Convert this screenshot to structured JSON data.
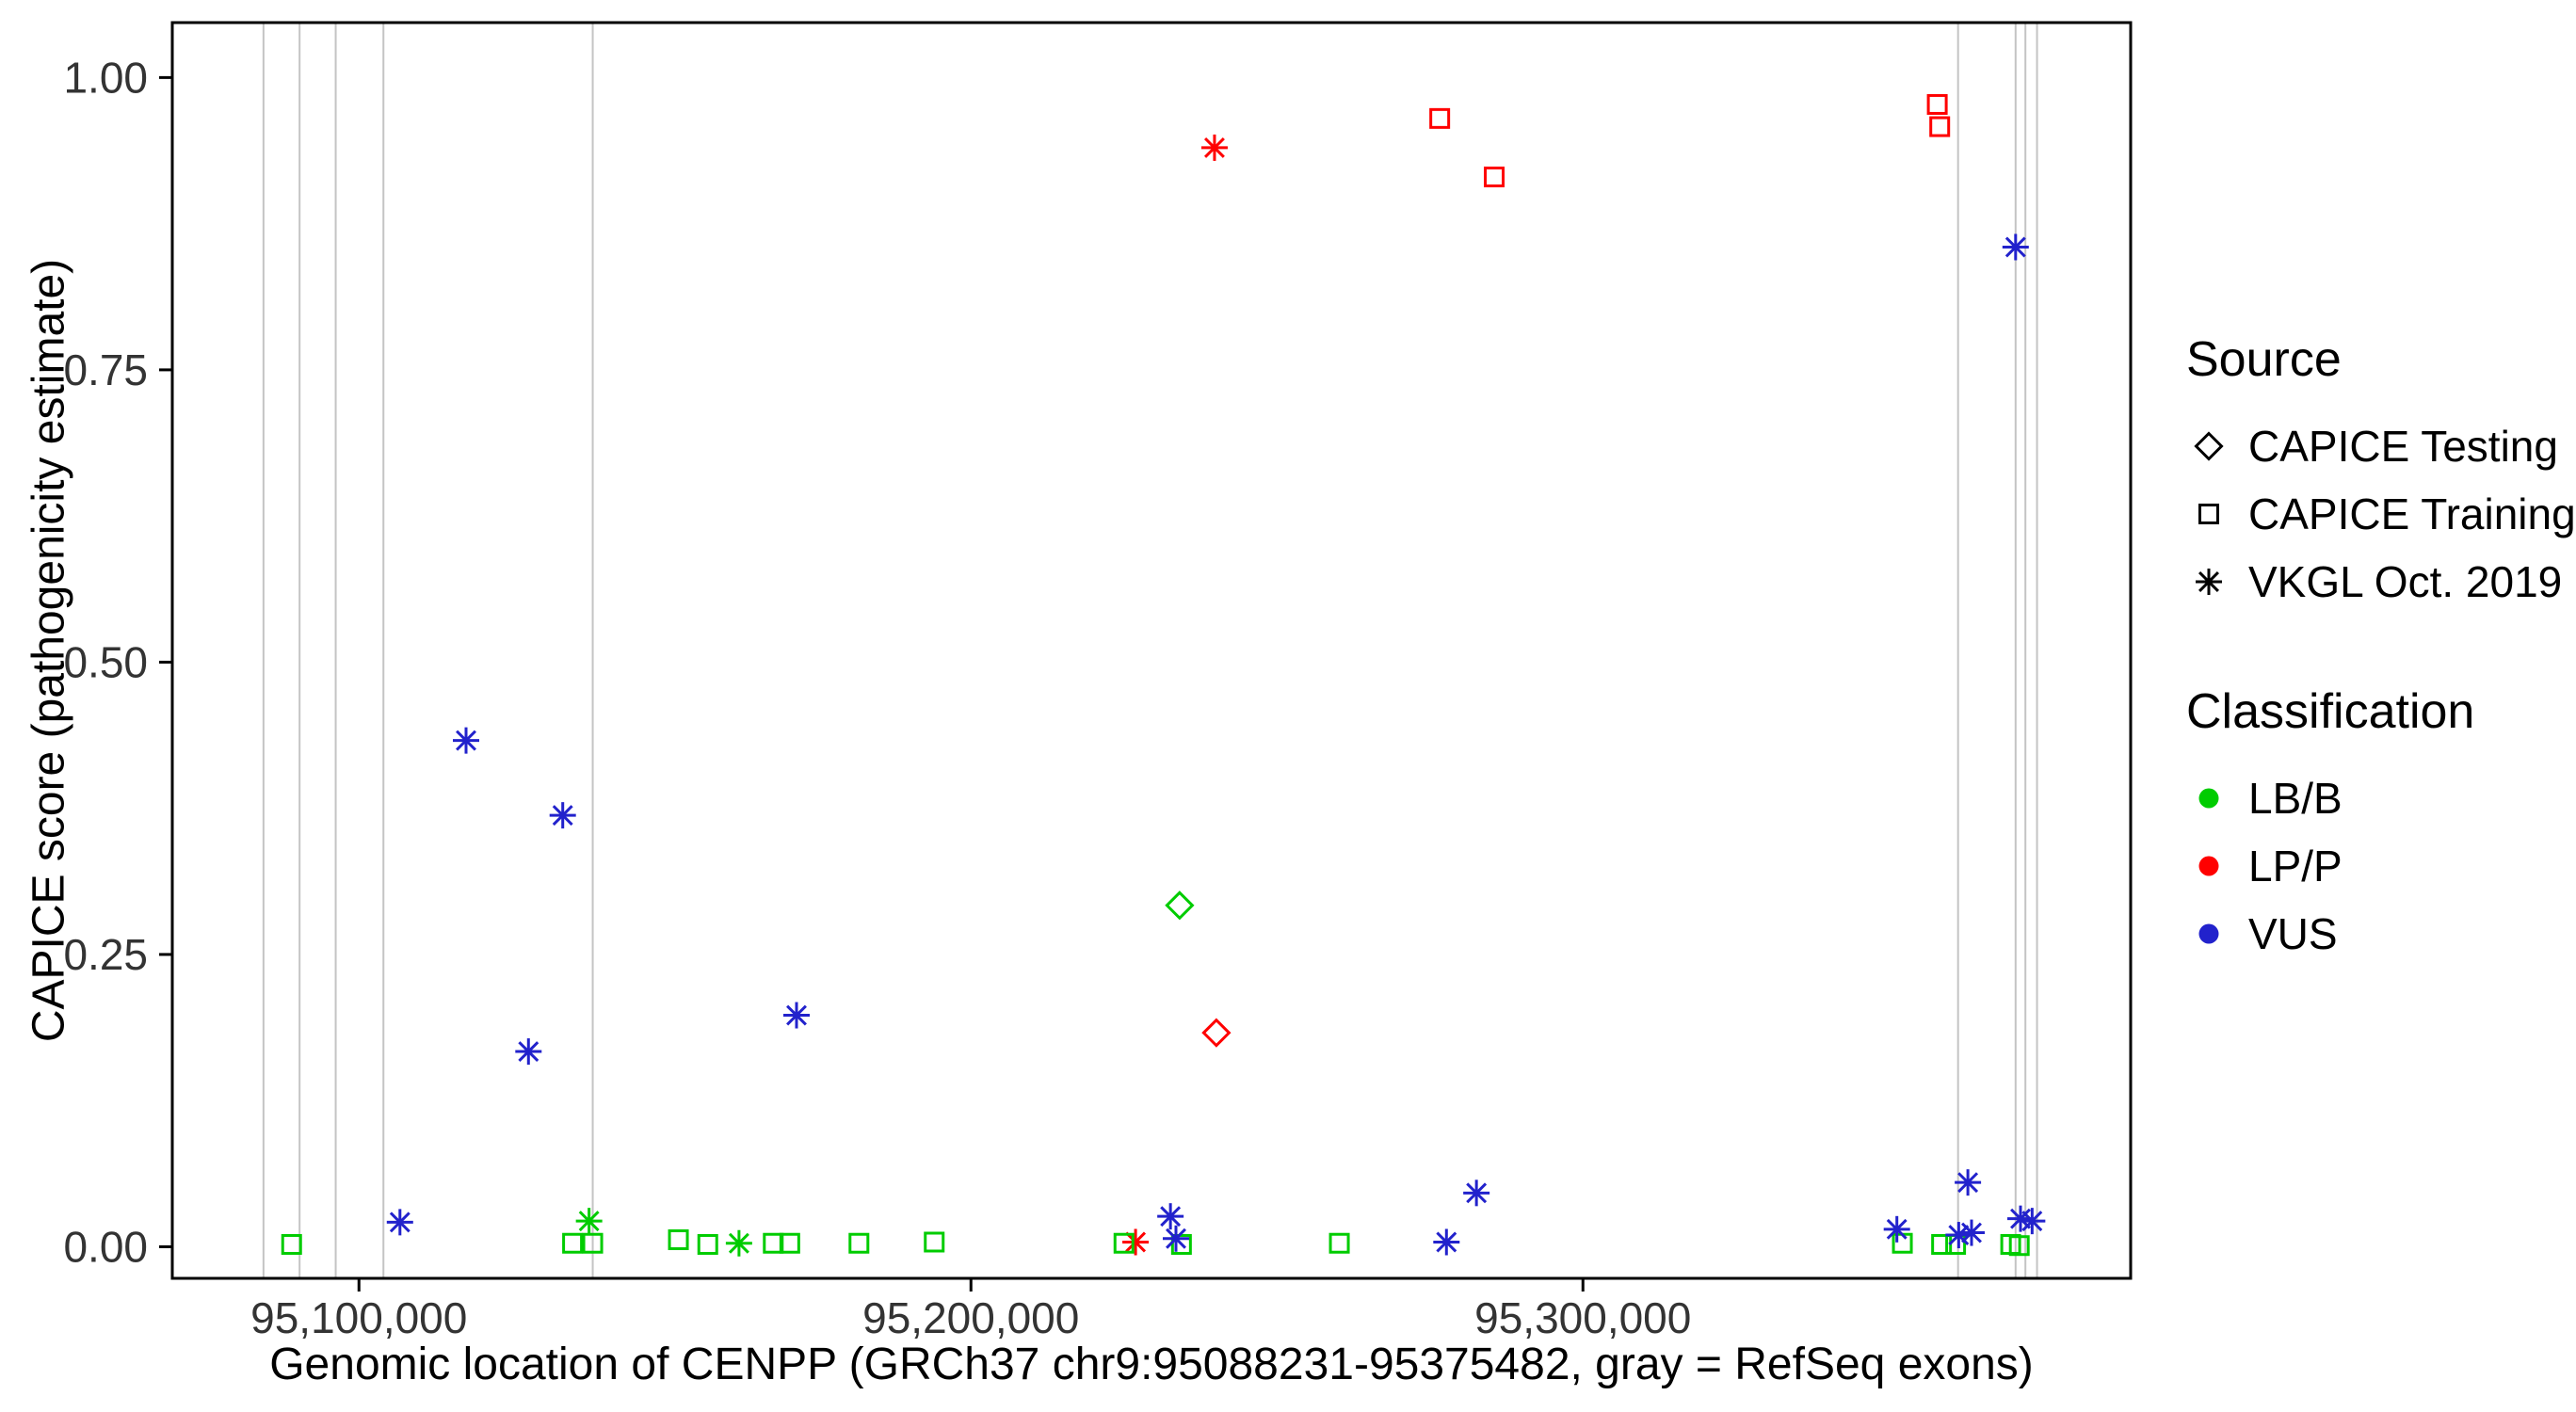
{
  "chart_data": {
    "type": "scatter",
    "title": "",
    "xlabel": "Genomic location of CENPP (GRCh37 chr9:95088231-95375482, gray = RefSeq exons)",
    "ylabel": "CAPICE score (pathogenicity estimate)",
    "xlim": [
      95069500,
      95389500
    ],
    "ylim": [
      -0.027,
      1.047
    ],
    "grid": false,
    "legend_position": "right",
    "x_ticks": [
      {
        "value": 95100000,
        "label": "95,100,000"
      },
      {
        "value": 95200000,
        "label": "95,200,000"
      },
      {
        "value": 95300000,
        "label": "95,300,000"
      }
    ],
    "y_ticks": [
      {
        "value": 0.0,
        "label": "0.00"
      },
      {
        "value": 0.25,
        "label": "0.25"
      },
      {
        "value": 0.5,
        "label": "0.50"
      },
      {
        "value": 0.75,
        "label": "0.75"
      },
      {
        "value": 1.0,
        "label": "1.00"
      }
    ],
    "refseq_exon_lines_x": [
      95084400,
      95090300,
      95096200,
      95104000,
      95138200,
      95361300,
      95370700,
      95372300,
      95374200
    ],
    "points": [
      {
        "x": 95239800,
        "y": 0.94,
        "source": "VKGL Oct. 2019",
        "classification": "LP/P"
      },
      {
        "x": 95276600,
        "y": 0.965,
        "source": "CAPICE Training",
        "classification": "LP/P"
      },
      {
        "x": 95285500,
        "y": 0.915,
        "source": "CAPICE Training",
        "classification": "LP/P"
      },
      {
        "x": 95357900,
        "y": 0.977,
        "source": "CAPICE Training",
        "classification": "LP/P"
      },
      {
        "x": 95358300,
        "y": 0.958,
        "source": "CAPICE Training",
        "classification": "LP/P"
      },
      {
        "x": 95240100,
        "y": 0.183,
        "source": "CAPICE Testing",
        "classification": "LP/P"
      },
      {
        "x": 95226900,
        "y": 0.004,
        "source": "VKGL Oct. 2019",
        "classification": "LP/P"
      },
      {
        "x": 95234100,
        "y": 0.292,
        "source": "CAPICE Testing",
        "classification": "LB/B"
      },
      {
        "x": 95089000,
        "y": 0.002,
        "source": "CAPICE Training",
        "classification": "LB/B"
      },
      {
        "x": 95134900,
        "y": 0.003,
        "source": "CAPICE Training",
        "classification": "LB/B"
      },
      {
        "x": 95138200,
        "y": 0.003,
        "source": "CAPICE Training",
        "classification": "LB/B"
      },
      {
        "x": 95137600,
        "y": 0.022,
        "source": "VKGL Oct. 2019",
        "classification": "LB/B"
      },
      {
        "x": 95152200,
        "y": 0.006,
        "source": "CAPICE Training",
        "classification": "LB/B"
      },
      {
        "x": 95157000,
        "y": 0.002,
        "source": "CAPICE Training",
        "classification": "LB/B"
      },
      {
        "x": 95162100,
        "y": 0.003,
        "source": "VKGL Oct. 2019",
        "classification": "LB/B"
      },
      {
        "x": 95167700,
        "y": 0.003,
        "source": "CAPICE Training",
        "classification": "LB/B"
      },
      {
        "x": 95170400,
        "y": 0.003,
        "source": "CAPICE Training",
        "classification": "LB/B"
      },
      {
        "x": 95181700,
        "y": 0.003,
        "source": "CAPICE Training",
        "classification": "LB/B"
      },
      {
        "x": 95194000,
        "y": 0.004,
        "source": "CAPICE Training",
        "classification": "LB/B"
      },
      {
        "x": 95225000,
        "y": 0.003,
        "source": "CAPICE Training",
        "classification": "LB/B"
      },
      {
        "x": 95234400,
        "y": 0.002,
        "source": "CAPICE Training",
        "classification": "LB/B"
      },
      {
        "x": 95260200,
        "y": 0.003,
        "source": "CAPICE Training",
        "classification": "LB/B"
      },
      {
        "x": 95352200,
        "y": 0.003,
        "source": "CAPICE Training",
        "classification": "LB/B"
      },
      {
        "x": 95358600,
        "y": 0.002,
        "source": "CAPICE Training",
        "classification": "LB/B"
      },
      {
        "x": 95360900,
        "y": 0.002,
        "source": "CAPICE Training",
        "classification": "LB/B"
      },
      {
        "x": 95369900,
        "y": 0.002,
        "source": "CAPICE Training",
        "classification": "LB/B"
      },
      {
        "x": 95371300,
        "y": 0.001,
        "source": "CAPICE Training",
        "classification": "LB/B"
      },
      {
        "x": 95117500,
        "y": 0.433,
        "source": "VKGL Oct. 2019",
        "classification": "VUS"
      },
      {
        "x": 95133300,
        "y": 0.369,
        "source": "VKGL Oct. 2019",
        "classification": "VUS"
      },
      {
        "x": 95127700,
        "y": 0.167,
        "source": "VKGL Oct. 2019",
        "classification": "VUS"
      },
      {
        "x": 95171500,
        "y": 0.198,
        "source": "VKGL Oct. 2019",
        "classification": "VUS"
      },
      {
        "x": 95370700,
        "y": 0.855,
        "source": "VKGL Oct. 2019",
        "classification": "VUS"
      },
      {
        "x": 95106700,
        "y": 0.021,
        "source": "VKGL Oct. 2019",
        "classification": "VUS"
      },
      {
        "x": 95232600,
        "y": 0.026,
        "source": "VKGL Oct. 2019",
        "classification": "VUS"
      },
      {
        "x": 95233500,
        "y": 0.007,
        "source": "VKGL Oct. 2019",
        "classification": "VUS"
      },
      {
        "x": 95277700,
        "y": 0.004,
        "source": "VKGL Oct. 2019",
        "classification": "VUS"
      },
      {
        "x": 95282600,
        "y": 0.046,
        "source": "VKGL Oct. 2019",
        "classification": "VUS"
      },
      {
        "x": 95351300,
        "y": 0.015,
        "source": "VKGL Oct. 2019",
        "classification": "VUS"
      },
      {
        "x": 95361400,
        "y": 0.01,
        "source": "VKGL Oct. 2019",
        "classification": "VUS"
      },
      {
        "x": 95362900,
        "y": 0.055,
        "source": "VKGL Oct. 2019",
        "classification": "VUS"
      },
      {
        "x": 95363500,
        "y": 0.012,
        "source": "VKGL Oct. 2019",
        "classification": "VUS"
      },
      {
        "x": 95371500,
        "y": 0.024,
        "source": "VKGL Oct. 2019",
        "classification": "VUS"
      },
      {
        "x": 95373400,
        "y": 0.022,
        "source": "VKGL Oct. 2019",
        "classification": "VUS"
      }
    ]
  },
  "legend": {
    "source": {
      "title": "Source",
      "items": [
        {
          "label": "CAPICE Testing",
          "symbol": "diamond"
        },
        {
          "label": "CAPICE Training",
          "symbol": "square"
        },
        {
          "label": "VKGL Oct. 2019",
          "symbol": "asterisk"
        }
      ]
    },
    "classification": {
      "title": "Classification",
      "items": [
        {
          "label": "LB/B",
          "color_key": "LB/B"
        },
        {
          "label": "LP/P",
          "color_key": "LP/P"
        },
        {
          "label": "VUS",
          "color_key": "VUS"
        }
      ]
    }
  },
  "colors": {
    "LB/B": "#00CC00",
    "LP/P": "#FF0000",
    "VUS": "#2222CC",
    "exon_line": "#C4C4C4",
    "axis_text": "#333333"
  }
}
